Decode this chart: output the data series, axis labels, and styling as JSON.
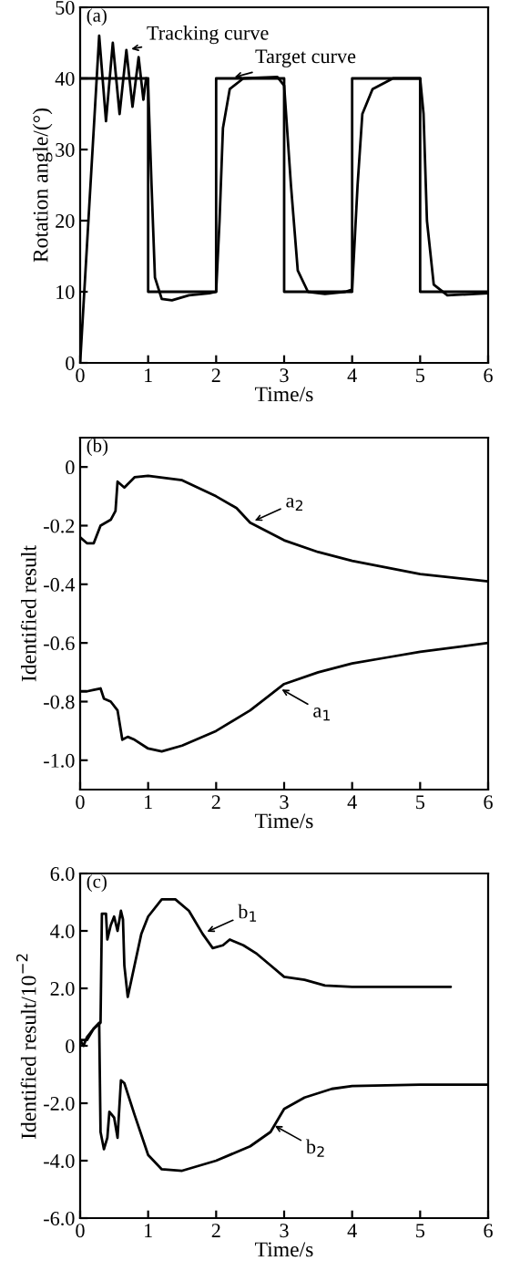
{
  "chart_data": [
    {
      "type": "line",
      "xlabel": "Time/s",
      "ylabel": "Rotation angle/(°)",
      "xlim": [
        0,
        6
      ],
      "ylim": [
        0,
        50
      ],
      "xticks": [
        0,
        1,
        2,
        3,
        4,
        5,
        6
      ],
      "yticks": [
        0,
        10,
        20,
        30,
        40,
        50
      ],
      "grid": false,
      "legend": false,
      "marker": "none",
      "line_style": "solid",
      "annotations": [
        "(a)",
        {
          "text": "Tracking curve",
          "x": 0.68,
          "y": 44
        },
        {
          "text": "Target curve",
          "x": 2.2,
          "y": 40
        }
      ],
      "series": [
        {
          "color": "#000000",
          "x": [
            0,
            0.28,
            0.38,
            0.48,
            0.58,
            0.68,
            0.77,
            0.86,
            0.93,
            0.97,
            1.0,
            1.05,
            1.1,
            1.2,
            1.35,
            1.6,
            1.9,
            2.0,
            2.05,
            2.1,
            2.2,
            2.4,
            2.9,
            3.0,
            3.1,
            3.2,
            3.35,
            3.6,
            3.9,
            4.0,
            4.08,
            4.15,
            4.3,
            4.6,
            5.0,
            5.05,
            5.1,
            5.2,
            5.4,
            6
          ],
          "values": [
            0,
            46,
            34,
            45,
            35,
            44,
            36,
            43,
            37,
            40,
            39,
            25,
            12,
            9,
            8.8,
            9.5,
            9.8,
            10,
            20,
            33,
            38.5,
            40,
            40.2,
            39,
            25,
            13,
            10,
            9.7,
            10,
            10.3,
            25,
            35,
            38.5,
            40,
            40,
            35,
            20,
            11,
            9.5,
            9.8
          ]
        },
        {
          "color": "#000000",
          "x": [
            0,
            1,
            1,
            2,
            2,
            3,
            3,
            4,
            4,
            5,
            5,
            6
          ],
          "values": [
            40,
            40,
            10,
            10,
            40,
            40,
            10,
            10,
            40,
            40,
            10,
            10
          ]
        }
      ]
    },
    {
      "type": "line",
      "xlabel": "Time/s",
      "ylabel": "Identified result",
      "xlim": [
        0,
        6
      ],
      "ylim": [
        -1.1,
        0.1
      ],
      "xticks": [
        0,
        1,
        2,
        3,
        4,
        5,
        6
      ],
      "yticks": [
        {
          "value": 0,
          "label": "0"
        },
        {
          "value": -0.2,
          "label": "-0.2"
        },
        {
          "value": -0.4,
          "label": "-0.4"
        },
        {
          "value": -0.6,
          "label": "-0.6"
        },
        {
          "value": -0.8,
          "label": "-0.8"
        },
        {
          "value": -1.0,
          "label": "-1.0"
        }
      ],
      "grid": false,
      "legend": false,
      "marker": "none",
      "line_style": "solid",
      "annotations": [
        "(b)",
        {
          "text": "a$_{2}$",
          "x": 2.5,
          "y": -0.19
        },
        {
          "text": "a$_{1}$",
          "x": 2.9,
          "y": -0.75
        }
      ],
      "series": [
        {
          "color": "#000000",
          "x": [
            0,
            0.1,
            0.2,
            0.3,
            0.45,
            0.52,
            0.55,
            0.6,
            0.65,
            0.8,
            1.0,
            1.5,
            2.0,
            2.3,
            2.5,
            3,
            3.5,
            4,
            5,
            6
          ],
          "values": [
            -0.24,
            -0.26,
            -0.26,
            -0.2,
            -0.18,
            -0.15,
            -0.05,
            -0.06,
            -0.07,
            -0.035,
            -0.03,
            -0.045,
            -0.1,
            -0.14,
            -0.19,
            -0.25,
            -0.29,
            -0.32,
            -0.365,
            -0.39
          ]
        },
        {
          "color": "#000000",
          "x": [
            0,
            0.1,
            0.2,
            0.3,
            0.35,
            0.45,
            0.55,
            0.62,
            0.7,
            0.8,
            1.0,
            1.2,
            1.5,
            2.0,
            2.5,
            3,
            3.5,
            4,
            4.5,
            5,
            6
          ],
          "values": [
            -0.765,
            -0.765,
            -0.76,
            -0.755,
            -0.79,
            -0.8,
            -0.83,
            -0.93,
            -0.92,
            -0.93,
            -0.96,
            -0.97,
            -0.95,
            -0.9,
            -0.83,
            -0.74,
            -0.7,
            -0.67,
            -0.65,
            -0.63,
            -0.6
          ]
        }
      ]
    },
    {
      "type": "line",
      "xlabel": "Time/s",
      "ylabel": "Identified result/10$^{−2}$",
      "xlim": [
        0,
        6
      ],
      "ylim": [
        -6,
        6
      ],
      "xticks": [
        0,
        1,
        2,
        3,
        4,
        5,
        6
      ],
      "yticks": [
        {
          "value": 6,
          "label": "6.0"
        },
        {
          "value": 4,
          "label": "4.0"
        },
        {
          "value": 2,
          "label": "2.0"
        },
        {
          "value": 0,
          "label": "0"
        },
        {
          "value": -2,
          "label": "-2.0"
        },
        {
          "value": -4,
          "label": "-4.0"
        },
        {
          "value": -6,
          "label": "-6.0"
        }
      ],
      "grid": false,
      "legend": false,
      "marker": "none",
      "line_style": "solid",
      "annotations": [
        "(c)",
        {
          "text": "b$_{1}$",
          "x": 1.8,
          "y": 3.9
        },
        {
          "text": "b$_{2}$",
          "x": 2.8,
          "y": -2.7
        }
      ],
      "series": [
        {
          "color": "#000000",
          "x": [
            0,
            0.05,
            0.1,
            0.2,
            0.3,
            0.32,
            0.38,
            0.4,
            0.45,
            0.5,
            0.55,
            0.6,
            0.63,
            0.65,
            0.7,
            0.8,
            0.9,
            1.0,
            1.2,
            1.4,
            1.6,
            1.8,
            1.95,
            2.1,
            2.2,
            2.4,
            2.6,
            2.8,
            3.0,
            3.3,
            3.6,
            4,
            5.45
          ],
          "values": [
            0.2,
            0,
            0.3,
            0.6,
            0.8,
            4.6,
            4.6,
            3.7,
            4.2,
            4.5,
            4.0,
            4.7,
            4.4,
            2.8,
            1.7,
            2.8,
            3.9,
            4.5,
            5.1,
            5.1,
            4.7,
            3.9,
            3.4,
            3.5,
            3.7,
            3.5,
            3.2,
            2.8,
            2.4,
            2.3,
            2.1,
            2.05,
            2.05
          ]
        },
        {
          "color": "#000000",
          "x": [
            0,
            0.1,
            0.2,
            0.28,
            0.3,
            0.35,
            0.4,
            0.43,
            0.5,
            0.55,
            0.6,
            0.65,
            0.8,
            1.0,
            1.2,
            1.5,
            2.0,
            2.5,
            2.8,
            3.0,
            3.3,
            3.7,
            4,
            5,
            6
          ],
          "values": [
            0.2,
            0.2,
            0.6,
            0.8,
            -3.0,
            -3.6,
            -3.2,
            -2.3,
            -2.5,
            -3.2,
            -1.2,
            -1.3,
            -2.4,
            -3.8,
            -4.3,
            -4.35,
            -4.0,
            -3.5,
            -3.0,
            -2.2,
            -1.8,
            -1.5,
            -1.4,
            -1.35,
            -1.35
          ]
        }
      ]
    }
  ]
}
